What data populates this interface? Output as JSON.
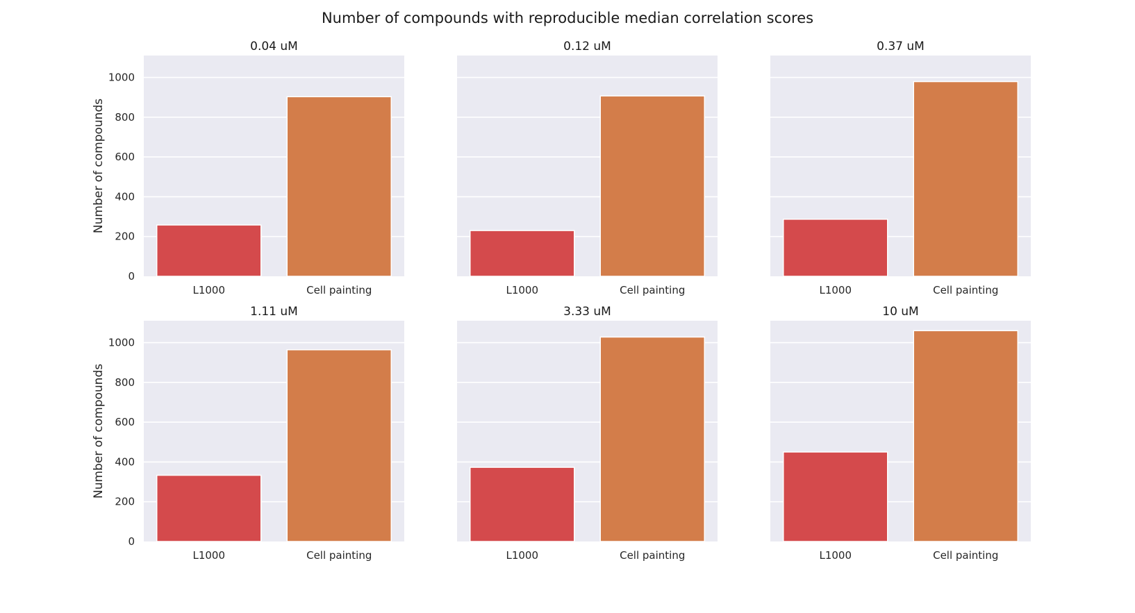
{
  "chart_data": {
    "type": "bar",
    "title": "Number of compounds with reproducible median correlation scores",
    "ylabel": "Number of compounds",
    "ylim": [
      0,
      1110
    ],
    "yticks": [
      0,
      200,
      400,
      600,
      800,
      1000
    ],
    "grid": true,
    "categories": [
      "L1000",
      "Cell painting"
    ],
    "colors": {
      "L1000": "#d44a4c",
      "Cell painting": "#d37d4a"
    },
    "panels": [
      {
        "title": "0.04 uM",
        "values": [
          258,
          903
        ]
      },
      {
        "title": "0.12 uM",
        "values": [
          230,
          907
        ]
      },
      {
        "title": "0.37 uM",
        "values": [
          287,
          979
        ]
      },
      {
        "title": "1.11 uM",
        "values": [
          333,
          964
        ]
      },
      {
        "title": "3.33 uM",
        "values": [
          373,
          1028
        ]
      },
      {
        "title": "10 uM",
        "values": [
          450,
          1060
        ]
      }
    ]
  }
}
